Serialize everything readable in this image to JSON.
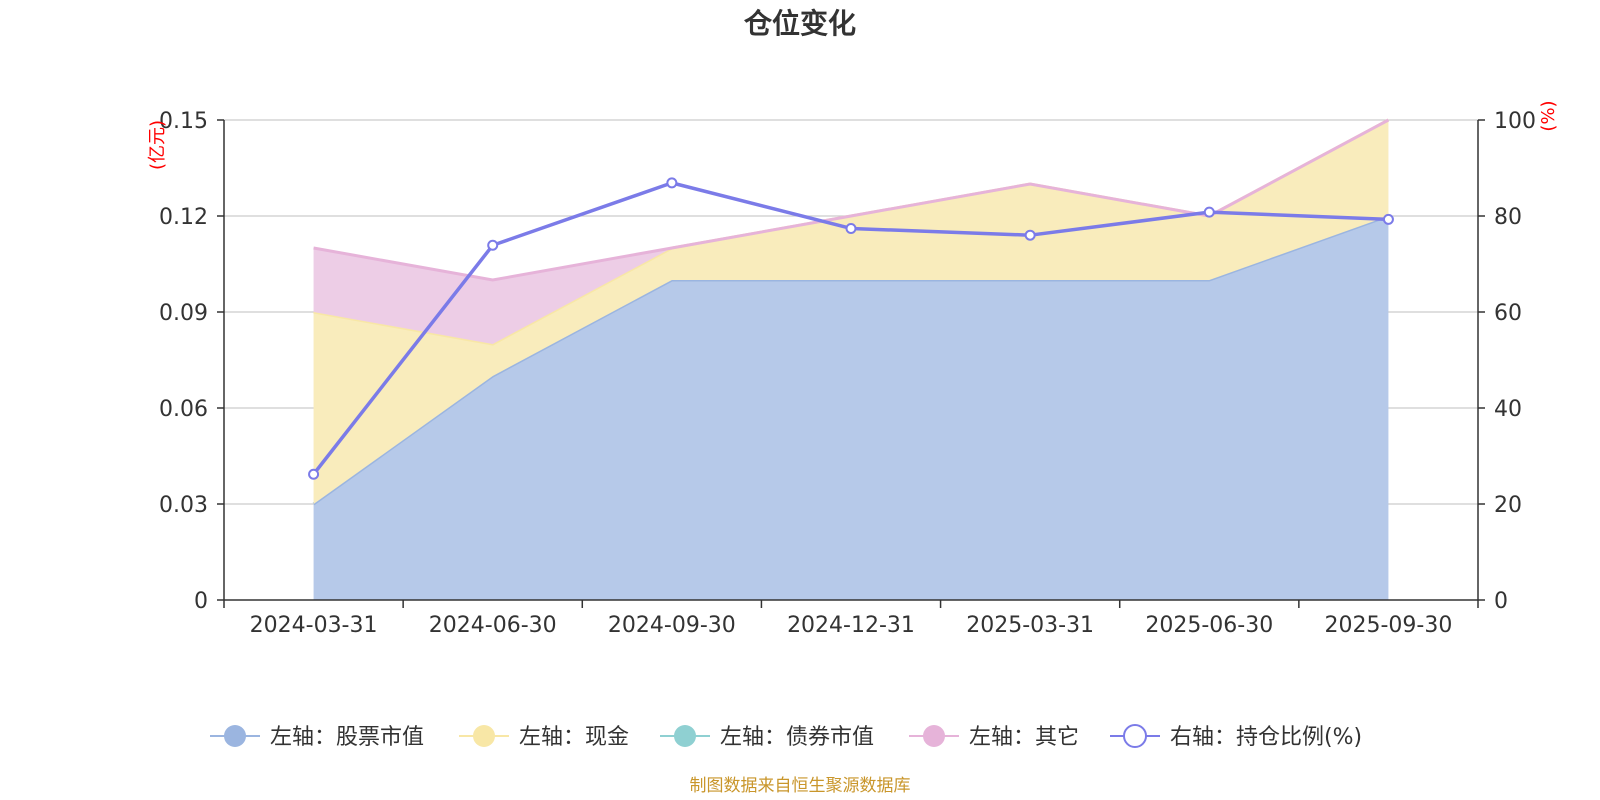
{
  "chart_data": {
    "type": "area",
    "title": "仓位变化",
    "categories": [
      "2024-03-31",
      "2024-06-30",
      "2024-09-30",
      "2024-12-31",
      "2025-03-31",
      "2025-06-30",
      "2025-09-30"
    ],
    "left_axis": {
      "unit_label": "(亿元)",
      "ylim": [
        0,
        0.15
      ],
      "ticks": [
        "0",
        "0.03",
        "0.06",
        "0.09",
        "0.12",
        "0.15"
      ]
    },
    "right_axis": {
      "unit_label": "(%)",
      "ylim": [
        0,
        100
      ],
      "ticks": [
        "0",
        "20",
        "40",
        "60",
        "80",
        "100"
      ]
    },
    "series": [
      {
        "name": "左轴：股票市值",
        "axis": "left",
        "kind": "stacked-area",
        "color": "#9bb5e0",
        "fill": "#b6c9e9",
        "values": [
          0.03,
          0.07,
          0.1,
          0.1,
          0.1,
          0.1,
          0.12
        ]
      },
      {
        "name": "左轴：现金",
        "axis": "left",
        "kind": "stacked-area",
        "color": "#f8e7a6",
        "fill": "#f9ecbc",
        "values": [
          0.06,
          0.01,
          0.01,
          0.02,
          0.03,
          0.02,
          0.03
        ]
      },
      {
        "name": "左轴：债券市值",
        "axis": "left",
        "kind": "stacked-area",
        "color": "#8fd0d2",
        "fill": "#a9dadc",
        "values": [
          0,
          0,
          0,
          0,
          0,
          0,
          0
        ]
      },
      {
        "name": "左轴：其它",
        "axis": "left",
        "kind": "stacked-area",
        "color": "#e6b3d9",
        "fill": "#edcde6",
        "values": [
          0.02,
          0.02,
          0,
          0,
          0,
          0,
          0
        ]
      },
      {
        "name": "右轴：持仓比例(%)",
        "axis": "right",
        "kind": "line",
        "color": "#7b7be8",
        "values": [
          26.2,
          73.9,
          86.9,
          77.4,
          76.0,
          80.8,
          79.3
        ]
      }
    ],
    "grid": true,
    "legend_position": "bottom"
  },
  "source": "制图数据来自恒生聚源数据库"
}
